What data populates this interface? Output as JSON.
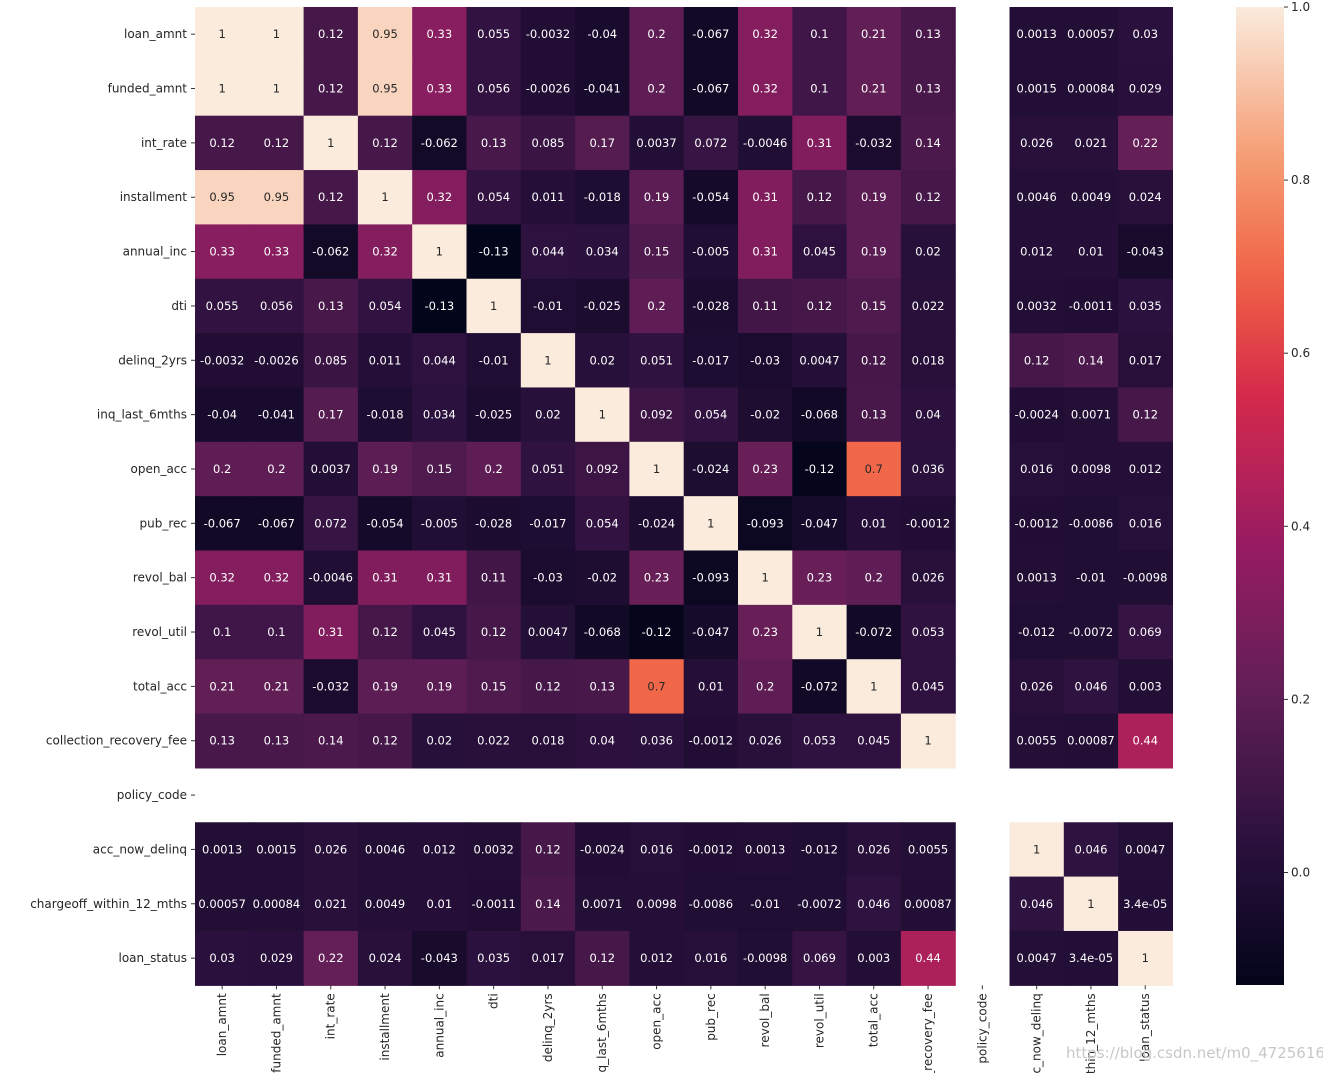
{
  "chart_data": {
    "type": "heatmap",
    "row_labels": [
      "loan_amnt",
      "funded_amnt",
      "int_rate",
      "installment",
      "annual_inc",
      "dti",
      "delinq_2yrs",
      "inq_last_6mths",
      "open_acc",
      "pub_rec",
      "revol_bal",
      "revol_util",
      "total_acc",
      "collection_recovery_fee",
      "policy_code",
      "acc_now_delinq",
      "chargeoff_within_12_mths",
      "loan_status"
    ],
    "col_labels": [
      "loan_amnt",
      "funded_amnt",
      "int_rate",
      "installment",
      "annual_inc",
      "dti",
      "delinq_2yrs",
      "iq_last_6mths",
      "open_acc",
      "pub_rec",
      "revol_bal",
      "revol_util",
      "total_acc",
      "_recovery_fee",
      "policy_code",
      "c_now_delinq",
      "ithin_12_mths",
      "loan_status"
    ],
    "cells": [
      [
        "1",
        "1",
        "0.12",
        "0.95",
        "0.33",
        "0.055",
        "-0.0032",
        "-0.04",
        "0.2",
        "-0.067",
        "0.32",
        "0.1",
        "0.21",
        "0.13",
        null,
        "0.0013",
        "0.00057",
        "0.03"
      ],
      [
        "1",
        "1",
        "0.12",
        "0.95",
        "0.33",
        "0.056",
        "-0.0026",
        "-0.041",
        "0.2",
        "-0.067",
        "0.32",
        "0.1",
        "0.21",
        "0.13",
        null,
        "0.0015",
        "0.00084",
        "0.029"
      ],
      [
        "0.12",
        "0.12",
        "1",
        "0.12",
        "-0.062",
        "0.13",
        "0.085",
        "0.17",
        "0.0037",
        "0.072",
        "-0.0046",
        "0.31",
        "-0.032",
        "0.14",
        null,
        "0.026",
        "0.021",
        "0.22"
      ],
      [
        "0.95",
        "0.95",
        "0.12",
        "1",
        "0.32",
        "0.054",
        "0.011",
        "-0.018",
        "0.19",
        "-0.054",
        "0.31",
        "0.12",
        "0.19",
        "0.12",
        null,
        "0.0046",
        "0.0049",
        "0.024"
      ],
      [
        "0.33",
        "0.33",
        "-0.062",
        "0.32",
        "1",
        "-0.13",
        "0.044",
        "0.034",
        "0.15",
        "-0.005",
        "0.31",
        "0.045",
        "0.19",
        "0.02",
        null,
        "0.012",
        "0.01",
        "-0.043"
      ],
      [
        "0.055",
        "0.056",
        "0.13",
        "0.054",
        "-0.13",
        "1",
        "-0.01",
        "-0.025",
        "0.2",
        "-0.028",
        "0.11",
        "0.12",
        "0.15",
        "0.022",
        null,
        "0.0032",
        "-0.0011",
        "0.035"
      ],
      [
        "-0.0032",
        "-0.0026",
        "0.085",
        "0.011",
        "0.044",
        "-0.01",
        "1",
        "0.02",
        "0.051",
        "-0.017",
        "-0.03",
        "0.0047",
        "0.12",
        "0.018",
        null,
        "0.12",
        "0.14",
        "0.017"
      ],
      [
        "-0.04",
        "-0.041",
        "0.17",
        "-0.018",
        "0.034",
        "-0.025",
        "0.02",
        "1",
        "0.092",
        "0.054",
        "-0.02",
        "-0.068",
        "0.13",
        "0.04",
        null,
        "-0.0024",
        "0.0071",
        "0.12"
      ],
      [
        "0.2",
        "0.2",
        "0.0037",
        "0.19",
        "0.15",
        "0.2",
        "0.051",
        "0.092",
        "1",
        "-0.024",
        "0.23",
        "-0.12",
        "0.7",
        "0.036",
        null,
        "0.016",
        "0.0098",
        "0.012"
      ],
      [
        "-0.067",
        "-0.067",
        "0.072",
        "-0.054",
        "-0.005",
        "-0.028",
        "-0.017",
        "0.054",
        "-0.024",
        "1",
        "-0.093",
        "-0.047",
        "0.01",
        "-0.0012",
        null,
        "-0.0012",
        "-0.0086",
        "0.016"
      ],
      [
        "0.32",
        "0.32",
        "-0.0046",
        "0.31",
        "0.31",
        "0.11",
        "-0.03",
        "-0.02",
        "0.23",
        "-0.093",
        "1",
        "0.23",
        "0.2",
        "0.026",
        null,
        "0.0013",
        "-0.01",
        "-0.0098"
      ],
      [
        "0.1",
        "0.1",
        "0.31",
        "0.12",
        "0.045",
        "0.12",
        "0.0047",
        "-0.068",
        "-0.12",
        "-0.047",
        "0.23",
        "1",
        "-0.072",
        "0.053",
        null,
        "-0.012",
        "-0.0072",
        "0.069"
      ],
      [
        "0.21",
        "0.21",
        "-0.032",
        "0.19",
        "0.19",
        "0.15",
        "0.12",
        "0.13",
        "0.7",
        "0.01",
        "0.2",
        "-0.072",
        "1",
        "0.045",
        null,
        "0.026",
        "0.046",
        "0.003"
      ],
      [
        "0.13",
        "0.13",
        "0.14",
        "0.12",
        "0.02",
        "0.022",
        "0.018",
        "0.04",
        "0.036",
        "-0.0012",
        "0.026",
        "0.053",
        "0.045",
        "1",
        null,
        "0.0055",
        "0.00087",
        "0.44"
      ],
      [
        null,
        null,
        null,
        null,
        null,
        null,
        null,
        null,
        null,
        null,
        null,
        null,
        null,
        null,
        null,
        null,
        null,
        null
      ],
      [
        "0.0013",
        "0.0015",
        "0.026",
        "0.0046",
        "0.012",
        "0.0032",
        "0.12",
        "-0.0024",
        "0.016",
        "-0.0012",
        "0.0013",
        "-0.012",
        "0.026",
        "0.0055",
        null,
        "1",
        "0.046",
        "0.0047"
      ],
      [
        "0.00057",
        "0.00084",
        "0.021",
        "0.0049",
        "0.01",
        "-0.0011",
        "0.14",
        "0.0071",
        "0.0098",
        "-0.0086",
        "-0.01",
        "-0.0072",
        "0.046",
        "0.00087",
        null,
        "0.046",
        "1",
        "3.4e-05"
      ],
      [
        "0.03",
        "0.029",
        "0.22",
        "0.024",
        "-0.043",
        "0.035",
        "0.017",
        "0.12",
        "0.012",
        "0.016",
        "-0.0098",
        "0.069",
        "0.003",
        "0.44",
        null,
        "0.0047",
        "3.4e-05",
        "1"
      ]
    ],
    "colorbar": {
      "vmin": -0.13,
      "vmax": 1.0,
      "ticks": [
        "1.0",
        "0.8",
        "0.6",
        "0.4",
        "0.2",
        "0.0"
      ],
      "colormap": "rocket"
    },
    "grid": false,
    "title": "",
    "xlabel": "",
    "ylabel": ""
  },
  "watermark": "https://blog.csdn.net/m0_47256162"
}
